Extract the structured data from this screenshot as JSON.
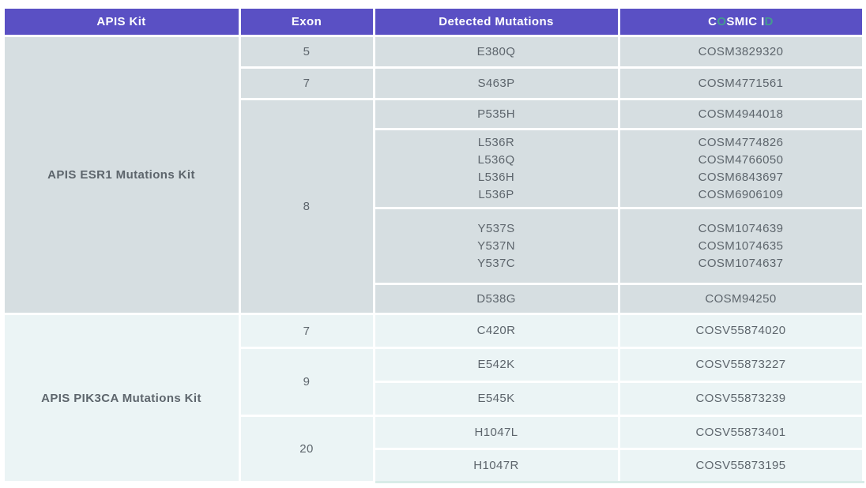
{
  "colors": {
    "header_bg": "#5a50c4",
    "teal_accent": "#449a90",
    "esr1_section_bg": "#d6dee1",
    "pik3ca_section_bg": "#ebf4f5",
    "body_text": "#5d656c",
    "border": "#ffffff"
  },
  "header": {
    "columns": [
      "APIS Kit",
      "Exon",
      "Detected Mutations",
      "COSMIC ID"
    ],
    "cosmic_segments": [
      {
        "text": "C",
        "teal": false
      },
      {
        "text": "O",
        "teal": true
      },
      {
        "text": "SMIC I",
        "teal": false
      },
      {
        "text": "D",
        "teal": true
      }
    ]
  },
  "kits": [
    {
      "name": "APIS ESR1 Mutations Kit"
    },
    {
      "name": "APIS PIK3CA Mutations Kit"
    }
  ],
  "rows": [
    {
      "exon": "5",
      "mutations": [
        "E380Q"
      ],
      "cosmic_ids": [
        "COSM3829320"
      ]
    },
    {
      "exon": "7",
      "mutations": [
        "S463P"
      ],
      "cosmic_ids": [
        "COSM4771561"
      ]
    },
    {
      "exon": "8",
      "mutations": [
        "P535H"
      ],
      "cosmic_ids": [
        "COSM4944018"
      ]
    },
    {
      "mutations": [
        "L536R",
        "L536Q",
        "L536H",
        "L536P"
      ],
      "cosmic_ids": [
        "COSM4774826",
        "COSM4766050",
        "COSM6843697",
        "COSM6906109"
      ]
    },
    {
      "mutations": [
        "Y537S",
        "Y537N",
        "Y537C"
      ],
      "cosmic_ids": [
        "COSM1074639",
        "COSM1074635",
        "COSM1074637"
      ]
    },
    {
      "mutations": [
        "D538G"
      ],
      "cosmic_ids": [
        "COSM94250"
      ]
    },
    {
      "exon": "7",
      "mutations": [
        "C420R"
      ],
      "cosmic_ids": [
        "COSV55874020"
      ]
    },
    {
      "exon": "9",
      "mutations": [
        "E542K"
      ],
      "cosmic_ids": [
        "COSV55873227"
      ]
    },
    {
      "mutations": [
        "E545K"
      ],
      "cosmic_ids": [
        "COSV55873239"
      ]
    },
    {
      "exon": "20",
      "mutations": [
        "H1047L"
      ],
      "cosmic_ids": [
        "COSV55873401"
      ]
    },
    {
      "mutations": [
        "H1047R"
      ],
      "cosmic_ids": [
        "COSV55873195"
      ]
    }
  ]
}
